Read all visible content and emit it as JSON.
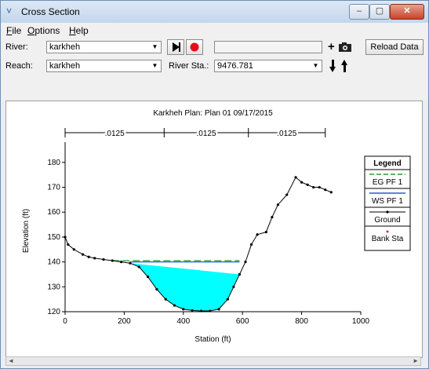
{
  "window": {
    "title": "Cross Section"
  },
  "menu": {
    "items": [
      {
        "label": "File",
        "u": "F",
        "rest": "ile"
      },
      {
        "label": "Options",
        "u": "O",
        "rest": "ptions"
      },
      {
        "label": "Help",
        "u": "H",
        "rest": "elp"
      }
    ]
  },
  "toolbar": {
    "river_label": "River:",
    "river_value": "karkheh",
    "reach_label": "Reach:",
    "reach_value": "karkheh",
    "river_sta_label": "River Sta.:",
    "river_sta_value": "9476.781",
    "reload_label": "Reload Data",
    "play_icon": "play-icon",
    "record_icon": "record-icon",
    "camera_icon": "camera-icon",
    "down_icon": "down-arrow-icon",
    "up_icon": "up-arrow-icon"
  },
  "chart_data": {
    "type": "line",
    "title": "Karkheh      Plan: Plan 01     09/17/2015",
    "xlabel": "Station (ft)",
    "ylabel": "Elevation (ft)",
    "xlim": [
      0,
      1000
    ],
    "ylim": [
      120,
      185
    ],
    "xticks": [
      0,
      200,
      400,
      600,
      800,
      1000
    ],
    "yticks": [
      120,
      130,
      140,
      150,
      160,
      170,
      180
    ],
    "grid": false,
    "manning": [
      {
        "label": ".0125",
        "from": 0,
        "to": 335
      },
      {
        "label": ".0125",
        "from": 335,
        "to": 620
      },
      {
        "label": ".0125",
        "from": 620,
        "to": 880
      }
    ],
    "bank_stations": [
      335,
      620
    ],
    "water_level": 140,
    "eg_level": 140.5,
    "series": [
      {
        "name": "Ground",
        "color": "#000000",
        "points": [
          [
            0,
            150
          ],
          [
            10,
            147
          ],
          [
            30,
            145
          ],
          [
            60,
            143
          ],
          [
            80,
            142
          ],
          [
            100,
            141.5
          ],
          [
            130,
            141
          ],
          [
            160,
            140.5
          ],
          [
            190,
            140
          ],
          [
            220,
            139.5
          ],
          [
            250,
            138
          ],
          [
            280,
            134
          ],
          [
            310,
            129
          ],
          [
            340,
            125
          ],
          [
            370,
            122.5
          ],
          [
            400,
            121
          ],
          [
            430,
            120.5
          ],
          [
            460,
            120.3
          ],
          [
            490,
            120.3
          ],
          [
            520,
            121
          ],
          [
            550,
            125
          ],
          [
            570,
            130
          ],
          [
            590,
            135
          ],
          [
            610,
            140
          ],
          [
            630,
            147
          ],
          [
            650,
            151
          ],
          [
            680,
            152
          ],
          [
            700,
            158
          ],
          [
            720,
            163
          ],
          [
            750,
            167
          ],
          [
            780,
            174
          ],
          [
            800,
            172
          ],
          [
            820,
            171
          ],
          [
            840,
            170
          ],
          [
            860,
            170
          ],
          [
            880,
            169
          ],
          [
            900,
            168
          ]
        ]
      }
    ],
    "legend": {
      "title": "Legend",
      "position": "right",
      "entries": [
        {
          "name": "EG PF 1",
          "color": "#2e9b2e",
          "style": "dashed"
        },
        {
          "name": "WS PF 1",
          "color": "#1f5fd6",
          "style": "solid"
        },
        {
          "name": "Ground",
          "color": "#000000",
          "style": "dots"
        },
        {
          "name": "Bank Sta",
          "color": "#c23a3a",
          "style": "dot"
        }
      ]
    },
    "water_color": "#00ffff",
    "water_edge_color": "#1f5fd6"
  }
}
